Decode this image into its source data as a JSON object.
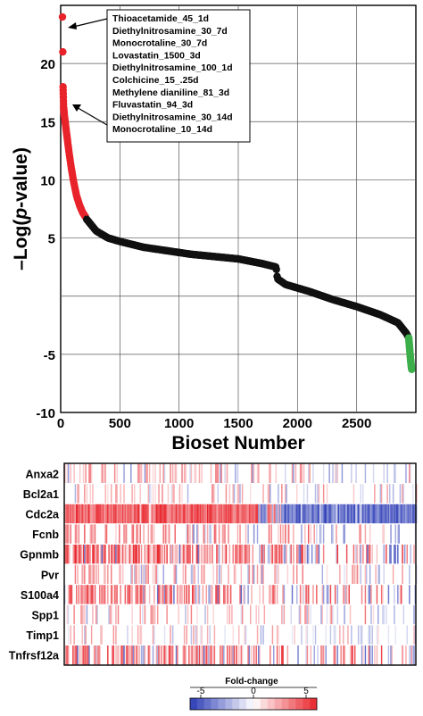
{
  "chart_data": [
    {
      "type": "scatter",
      "xlabel": "Bioset Number",
      "ylabel_prefix": "–Log(",
      "ylabel_italic": "p",
      "ylabel_suffix": "-value)",
      "xlim": [
        0,
        3000
      ],
      "ylim": [
        -10,
        25
      ],
      "x_ticks": [
        0,
        500,
        1000,
        1500,
        2000,
        2500
      ],
      "y_ticks": [
        -10,
        -5,
        0,
        5,
        10,
        15,
        20
      ],
      "y_tick_labels": [
        "-10",
        "-5",
        "",
        "5",
        "10",
        "15",
        "20"
      ],
      "grid": true,
      "series": [
        {
          "color": "#e8232a",
          "points": [
            [
              15,
              24
            ],
            [
              18,
              21
            ],
            [
              20,
              18
            ],
            [
              25,
              16.2
            ],
            [
              30,
              15.6
            ],
            [
              40,
              14.8
            ],
            [
              55,
              13.6
            ],
            [
              70,
              12.4
            ],
            [
              90,
              11
            ],
            [
              110,
              9.8
            ],
            [
              135,
              8.6
            ],
            [
              160,
              7.8
            ],
            [
              185,
              7.2
            ],
            [
              210,
              6.8
            ]
          ]
        },
        {
          "color": "#111111",
          "curve": [
            [
              220,
              6.6
            ],
            [
              300,
              5.6
            ],
            [
              400,
              5.0
            ],
            [
              500,
              4.7
            ],
            [
              700,
              4.2
            ],
            [
              900,
              3.9
            ],
            [
              1100,
              3.6
            ],
            [
              1300,
              3.4
            ],
            [
              1500,
              3.2
            ],
            [
              1700,
              2.8
            ],
            [
              1820,
              2.5
            ],
            [
              1830,
              1.5
            ],
            [
              1900,
              1.0
            ],
            [
              2100,
              0.4
            ],
            [
              2300,
              -0.3
            ],
            [
              2500,
              -0.9
            ],
            [
              2700,
              -1.6
            ],
            [
              2850,
              -2.3
            ],
            [
              2920,
              -3.2
            ],
            [
              2935,
              -3.5
            ]
          ]
        },
        {
          "color": "#3cae4a",
          "points": [
            [
              2940,
              -3.6
            ],
            [
              2945,
              -4.2
            ],
            [
              2950,
              -4.8
            ],
            [
              2955,
              -5.4
            ],
            [
              2960,
              -5.9
            ],
            [
              2965,
              -6.3
            ]
          ]
        }
      ],
      "annotations": [
        "Thioacetamide_45_1d",
        "Diethylnitrosamine_30_7d",
        "Monocrotaline_30_7d",
        "Lovastatin_1500_3d",
        "Diethylnitrosamine_100_1d",
        "Colchicine_15_.25d",
        "Methylene dianiline_81_3d",
        "Fluvastatin_94_3d",
        "Diethylnitrosamine_30_14d",
        "Monocrotaline_10_14d"
      ]
    },
    {
      "type": "heatmap",
      "rows": [
        "Anxa2",
        "Bcl2a1",
        "Cdc2a",
        "Fcnb",
        "Gpnmb",
        "Pvr",
        "S100a4",
        "Spp1",
        "Timp1",
        "Tnfrsf12a"
      ],
      "row_profiles": {
        "Anxa2": {
          "red_density": 0.25,
          "blue_density": 0.12,
          "intensity": 0.45
        },
        "Bcl2a1": {
          "red_density": 0.2,
          "blue_density": 0.1,
          "intensity": 0.4
        },
        "Cdc2a": {
          "red_density": 0.95,
          "blue_density": 0.95,
          "intensity": 0.95
        },
        "Fcnb": {
          "red_density": 0.35,
          "blue_density": 0.1,
          "intensity": 0.55
        },
        "Gpnmb": {
          "red_density": 0.55,
          "blue_density": 0.15,
          "intensity": 0.7
        },
        "Pvr": {
          "red_density": 0.3,
          "blue_density": 0.1,
          "intensity": 0.45
        },
        "S100a4": {
          "red_density": 0.5,
          "blue_density": 0.15,
          "intensity": 0.65
        },
        "Spp1": {
          "red_density": 0.2,
          "blue_density": 0.1,
          "intensity": 0.45
        },
        "Timp1": {
          "red_density": 0.15,
          "blue_density": 0.12,
          "intensity": 0.35
        },
        "Tnfrsf12a": {
          "red_density": 0.5,
          "blue_density": 0.15,
          "intensity": 0.65
        }
      },
      "colorbar": {
        "title": "Fold-change",
        "ticks": [
          -5,
          0,
          5
        ],
        "tick_labels": [
          "-5",
          "0",
          "5"
        ],
        "low_color": "#2b3bb5",
        "mid_color": "#ffffff",
        "high_color": "#e8232a"
      }
    }
  ]
}
